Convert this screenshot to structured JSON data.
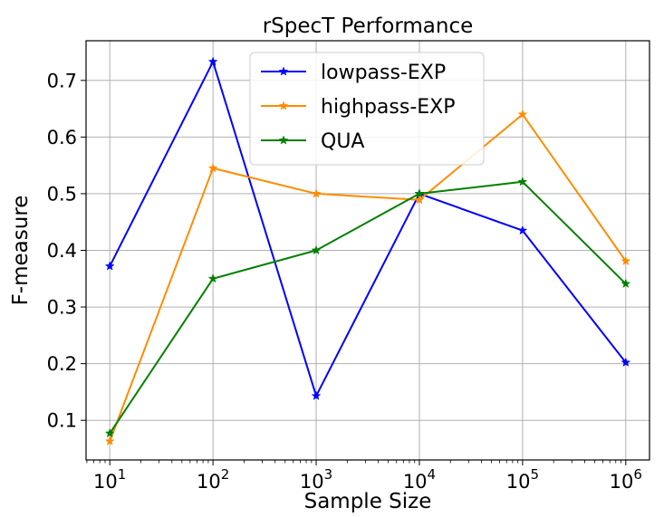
{
  "chart_data": {
    "type": "line",
    "title": "rSpecT Performance",
    "xlabel": "Sample Size",
    "ylabel": "F-measure",
    "xscale": "log",
    "x": [
      10,
      100,
      1000,
      10000,
      100000,
      1000000
    ],
    "xtick_labels": [
      {
        "base": "10",
        "exp": "1"
      },
      {
        "base": "10",
        "exp": "2"
      },
      {
        "base": "10",
        "exp": "3"
      },
      {
        "base": "10",
        "exp": "4"
      },
      {
        "base": "10",
        "exp": "5"
      },
      {
        "base": "10",
        "exp": "6"
      }
    ],
    "xlim_exp": [
      0.77,
      6.23
    ],
    "ylim": [
      0.03,
      0.77
    ],
    "yticks": [
      "0.1",
      "0.2",
      "0.3",
      "0.4",
      "0.5",
      "0.6",
      "0.7"
    ],
    "grid": true,
    "legend_position": "top-center",
    "series": [
      {
        "name": "lowpass-EXP",
        "color": "#0000ff",
        "marker": "star",
        "values": [
          0.372,
          0.733,
          0.143,
          0.5,
          0.435,
          0.202
        ]
      },
      {
        "name": "highpass-EXP",
        "color": "#ff8c00",
        "marker": "star",
        "values": [
          0.063,
          0.545,
          0.5,
          0.489,
          0.64,
          0.381
        ]
      },
      {
        "name": "QUA",
        "color": "#008000",
        "marker": "star",
        "values": [
          0.077,
          0.35,
          0.4,
          0.5,
          0.521,
          0.341
        ]
      }
    ]
  }
}
